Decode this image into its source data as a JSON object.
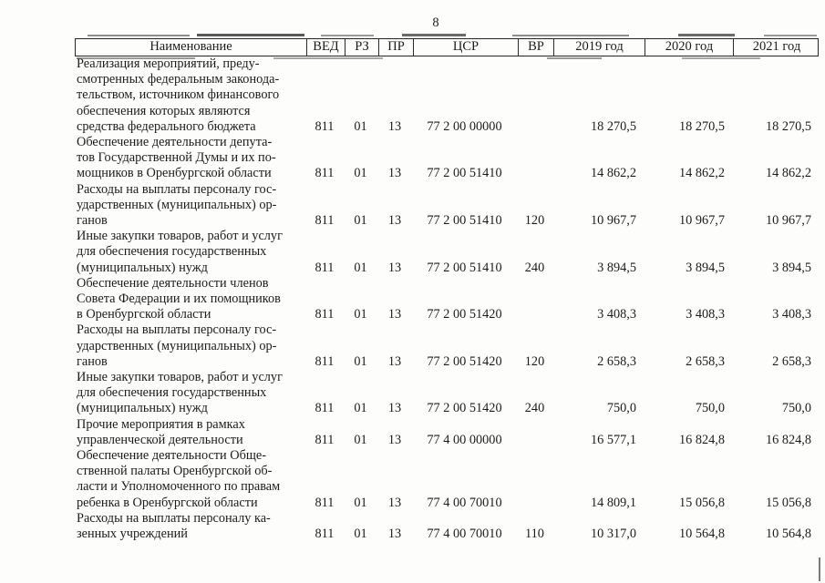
{
  "page": {
    "number": "8"
  },
  "colors": {
    "text": "#1c1c1c",
    "border": "#262626",
    "background": "#fdfdfc"
  },
  "table": {
    "columns": [
      "Наименование",
      "ВЕД",
      "РЗ",
      "ПР",
      "ЦСР",
      "ВР",
      "2019 год",
      "2020 год",
      "2021 год"
    ],
    "rows": [
      {
        "name": "Реализация мероприятий, преду-\nсмотренных федеральным законода-\nтельством, источником финансового\nобеспечения которых являются\nсредства федерального бюджета",
        "ved": "811",
        "rz": "01",
        "pr": "13",
        "csr": "77 2 00 00000",
        "vr": "",
        "y2019": "18 270,5",
        "y2020": "18 270,5",
        "y2021": "18 270,5"
      },
      {
        "name": "Обеспечение деятельности депута-\nтов Государственной Думы и их по-\nмощников в Оренбургской области",
        "ved": "811",
        "rz": "01",
        "pr": "13",
        "csr": "77 2 00 51410",
        "vr": "",
        "y2019": "14 862,2",
        "y2020": "14 862,2",
        "y2021": "14 862,2"
      },
      {
        "name": "Расходы на выплаты персоналу гос-\nударственных (муниципальных) ор-\nганов",
        "ved": "811",
        "rz": "01",
        "pr": "13",
        "csr": "77 2 00 51410",
        "vr": "120",
        "y2019": "10 967,7",
        "y2020": "10 967,7",
        "y2021": "10 967,7"
      },
      {
        "name": "Иные закупки товаров, работ и услуг\nдля обеспечения государственных\n(муниципальных) нужд",
        "ved": "811",
        "rz": "01",
        "pr": "13",
        "csr": "77 2 00 51410",
        "vr": "240",
        "y2019": "3 894,5",
        "y2020": "3 894,5",
        "y2021": "3 894,5"
      },
      {
        "name": "Обеспечение деятельности членов\nСовета Федерации и их помощников\nв Оренбургской области",
        "ved": "811",
        "rz": "01",
        "pr": "13",
        "csr": "77 2 00 51420",
        "vr": "",
        "y2019": "3 408,3",
        "y2020": "3 408,3",
        "y2021": "3 408,3"
      },
      {
        "name": "Расходы на выплаты персоналу гос-\nударственных (муниципальных) ор-\nганов",
        "ved": "811",
        "rz": "01",
        "pr": "13",
        "csr": "77 2 00 51420",
        "vr": "120",
        "y2019": "2 658,3",
        "y2020": "2 658,3",
        "y2021": "2 658,3"
      },
      {
        "name": "Иные закупки товаров, работ и услуг\nдля обеспечения государственных\n(муниципальных) нужд",
        "ved": "811",
        "rz": "01",
        "pr": "13",
        "csr": "77 2 00 51420",
        "vr": "240",
        "y2019": "750,0",
        "y2020": "750,0",
        "y2021": "750,0"
      },
      {
        "name": "Прочие мероприятия в рамках\nуправленческой деятельности",
        "ved": "811",
        "rz": "01",
        "pr": "13",
        "csr": "77 4 00 00000",
        "vr": "",
        "y2019": "16 577,1",
        "y2020": "16 824,8",
        "y2021": "16 824,8"
      },
      {
        "name": "Обеспечение деятельности Обще-\nственной палаты Оренбургской об-\nласти и Уполномоченного по правам\nребенка в Оренбургской области",
        "ved": "811",
        "rz": "01",
        "pr": "13",
        "csr": "77 4 00 70010",
        "vr": "",
        "y2019": "14 809,1",
        "y2020": "15 056,8",
        "y2021": "15 056,8"
      },
      {
        "name": "Расходы на выплаты персоналу ка-\nзенных учреждений",
        "ved": "811",
        "rz": "01",
        "pr": "13",
        "csr": "77 4 00 70010",
        "vr": "110",
        "y2019": "10 317,0",
        "y2020": "10 564,8",
        "y2021": "10 564,8"
      }
    ]
  }
}
